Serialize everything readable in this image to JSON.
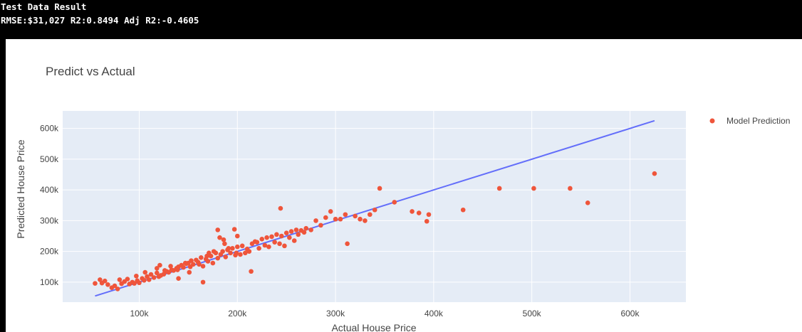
{
  "header": {
    "line1": "Test Data Result",
    "line2": "RMSE:$31,027 R2:0.8494 Adj R2:-0.4605"
  },
  "colors": {
    "scatter": "#EF553B",
    "line": "#636EFA",
    "plot_bg": "#E5ECF6",
    "grid": "#FFFFFF"
  },
  "chart_data": {
    "type": "scatter",
    "title": "Predict vs Actual",
    "xlabel": "Actual House Price",
    "ylabel": "Predicted House Price",
    "xlim": [
      22000,
      657000
    ],
    "ylim": [
      35000,
      657000
    ],
    "xticks": [
      100000,
      200000,
      300000,
      400000,
      500000,
      600000
    ],
    "xtick_labels": [
      "100k",
      "200k",
      "300k",
      "400k",
      "500k",
      "600k"
    ],
    "yticks": [
      100000,
      200000,
      300000,
      400000,
      500000,
      600000
    ],
    "ytick_labels": [
      "100k",
      "200k",
      "300k",
      "400k",
      "500k",
      "600k"
    ],
    "grid": true,
    "legend": "right",
    "series": [
      {
        "name": "Model Prediction",
        "type": "scatter",
        "color": "#EF553B",
        "x": [
          55000,
          60000,
          62000,
          65000,
          68000,
          72000,
          75000,
          78000,
          80000,
          82000,
          85000,
          88000,
          90000,
          93000,
          95000,
          98000,
          100000,
          103000,
          105000,
          108000,
          110000,
          112000,
          115000,
          118000,
          120000,
          122000,
          125000,
          128000,
          130000,
          133000,
          135000,
          138000,
          140000,
          143000,
          145000,
          148000,
          150000,
          152000,
          155000,
          158000,
          160000,
          163000,
          165000,
          168000,
          170000,
          173000,
          175000,
          178000,
          180000,
          183000,
          185000,
          188000,
          190000,
          193000,
          195000,
          198000,
          200000,
          205000,
          210000,
          215000,
          220000,
          225000,
          230000,
          235000,
          240000,
          245000,
          250000,
          255000,
          260000,
          265000,
          270000,
          280000,
          290000,
          300000,
          310000,
          320000,
          330000,
          340000,
          345000,
          360000,
          378000,
          385000,
          393000,
          395000,
          430000,
          467000,
          502000,
          539000,
          557000,
          625000,
          118000,
          126000,
          132000,
          139000,
          147000,
          153000,
          161000,
          169000,
          176000,
          182000,
          187000,
          191000,
          197000,
          203000,
          208000,
          212000,
          218000,
          222000,
          228000,
          232000,
          238000,
          243000,
          248000,
          253000,
          258000,
          262000,
          268000,
          275000,
          285000,
          295000,
          305000,
          312000,
          325000,
          335000,
          214000,
          244000,
          180000,
          200000,
          165000,
          199000,
          140000,
          121000,
          106000,
          97000,
          151000,
          171000,
          186000
        ],
        "y": [
          96000,
          108000,
          97000,
          104000,
          92000,
          82000,
          88000,
          78000,
          108000,
          95000,
          102000,
          110000,
          94000,
          100000,
          96000,
          105000,
          98000,
          112000,
          106000,
          118000,
          108000,
          125000,
          115000,
          130000,
          118000,
          122000,
          126000,
          135000,
          132000,
          140000,
          138000,
          145000,
          150000,
          155000,
          148000,
          160000,
          162000,
          150000,
          158000,
          172000,
          165000,
          180000,
          152000,
          175000,
          168000,
          185000,
          162000,
          195000,
          178000,
          190000,
          200000,
          182000,
          205000,
          195000,
          210000,
          188000,
          215000,
          218000,
          208000,
          225000,
          230000,
          240000,
          245000,
          248000,
          255000,
          250000,
          260000,
          265000,
          270000,
          268000,
          275000,
          300000,
          310000,
          305000,
          320000,
          315000,
          300000,
          335000,
          405000,
          360000,
          330000,
          325000,
          298000,
          320000,
          335000,
          405000,
          405000,
          405000,
          358000,
          453000,
          145000,
          138000,
          152000,
          140000,
          162000,
          170000,
          158000,
          185000,
          200000,
          245000,
          225000,
          210000,
          272000,
          190000,
          195000,
          200000,
          232000,
          210000,
          220000,
          215000,
          230000,
          225000,
          218000,
          245000,
          235000,
          255000,
          262000,
          270000,
          285000,
          330000,
          305000,
          225000,
          305000,
          320000,
          135000,
          340000,
          270000,
          250000,
          100000,
          195000,
          112000,
          155000,
          132000,
          120000,
          132000,
          195000,
          238000
        ]
      },
      {
        "name": "",
        "type": "line",
        "color": "#636EFA",
        "x": [
          55000,
          625000
        ],
        "y": [
          55000,
          625000
        ]
      }
    ]
  }
}
